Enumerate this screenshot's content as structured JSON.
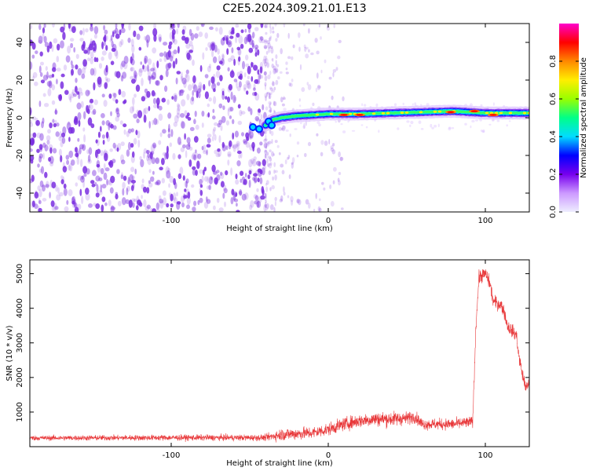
{
  "title": "C2E5.2024.309.21.01.E13",
  "colors": {
    "noise": "#7a2ee0",
    "snr_line": "#e8383a",
    "colorbar_stops": [
      "#eeeeff",
      "#cc99ff",
      "#7700ee",
      "#0000ff",
      "#00ddff",
      "#00ff88",
      "#99ff00",
      "#ffee00",
      "#ff8800",
      "#ff0000",
      "#ff00cc"
    ]
  },
  "chart_data": [
    {
      "type": "heatmap",
      "xlabel": "Height of straight line (km)",
      "ylabel": "Frequency (Hz)",
      "xlim": [
        -190,
        128
      ],
      "ylim": [
        -50,
        50
      ],
      "xticks": [
        -100,
        0,
        100
      ],
      "xtick_labels": [
        "-100",
        "0",
        "100"
      ],
      "yticks": [
        -40,
        -20,
        0,
        20,
        40
      ],
      "ytick_labels": [
        "-40",
        "-20",
        "0",
        "20",
        "40"
      ],
      "grid": false,
      "colorbar": {
        "label": "Normalized spectral amplitude",
        "range": [
          0,
          1
        ],
        "ticks": [
          0,
          0.2,
          0.4,
          0.6,
          0.8
        ],
        "tick_labels": [
          "0.0",
          "0.2",
          "0.4",
          "0.6",
          "0.8"
        ]
      },
      "noise_region_x": [
        -190,
        -40
      ],
      "signal_track": [
        {
          "x": -48,
          "f": -5
        },
        {
          "x": -40,
          "f": -4
        },
        {
          "x": -35,
          "f": -1
        },
        {
          "x": -30,
          "f": 0
        },
        {
          "x": -20,
          "f": 1
        },
        {
          "x": -10,
          "f": 1.5
        },
        {
          "x": 0,
          "f": 2
        },
        {
          "x": 20,
          "f": 2
        },
        {
          "x": 40,
          "f": 2.5
        },
        {
          "x": 60,
          "f": 3
        },
        {
          "x": 80,
          "f": 3.5
        },
        {
          "x": 100,
          "f": 2.5
        },
        {
          "x": 128,
          "f": 2.5
        }
      ],
      "signal_peaks": [
        {
          "x": 10,
          "f": 1.5
        },
        {
          "x": 20,
          "f": 1.5
        },
        {
          "x": 78,
          "f": 3
        },
        {
          "x": 93,
          "f": 3.5
        },
        {
          "x": 105,
          "f": 1.5
        }
      ]
    },
    {
      "type": "line",
      "xlabel": "Height of straight line (km)",
      "ylabel": "SNR (10 * v/v)",
      "xlim": [
        -190,
        128
      ],
      "ylim": [
        0,
        5400
      ],
      "xticks": [
        -100,
        0,
        100
      ],
      "xtick_labels": [
        "-100",
        "0",
        "100"
      ],
      "yticks": [
        1000,
        2000,
        3000,
        4000,
        5000
      ],
      "ytick_labels": [
        "1000",
        "2000",
        "3000",
        "4000",
        "5000"
      ],
      "grid": false,
      "trend": {
        "x": [
          -190,
          -100,
          -40,
          -30,
          -10,
          0,
          10,
          20,
          30,
          40,
          50,
          55,
          60,
          70,
          80,
          85,
          90,
          92,
          94,
          96,
          100,
          103,
          105,
          110,
          112,
          114,
          118,
          120,
          121,
          124,
          126,
          128
        ],
        "y": [
          250,
          260,
          260,
          350,
          400,
          500,
          650,
          750,
          800,
          800,
          820,
          870,
          650,
          650,
          650,
          680,
          700,
          750,
          3500,
          4900,
          5000,
          4700,
          4200,
          4100,
          3900,
          3500,
          3300,
          3200,
          2700,
          2000,
          1700,
          1800
        ]
      },
      "noise_amplitude": {
        "x": [
          -190,
          -40,
          -30,
          0,
          40,
          60,
          92,
          94,
          128
        ],
        "y": [
          80,
          100,
          200,
          200,
          240,
          180,
          180,
          230,
          200
        ]
      }
    }
  ]
}
